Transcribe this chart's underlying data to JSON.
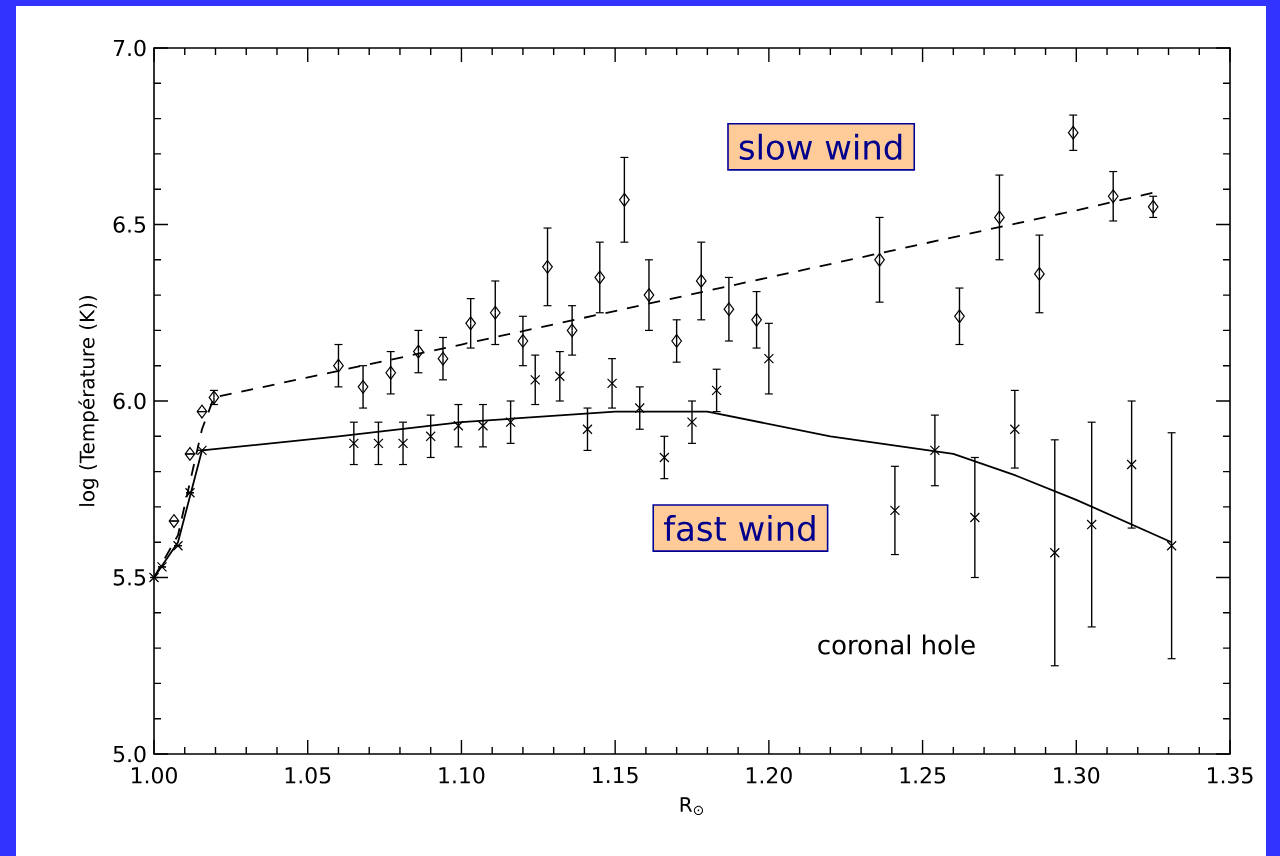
{
  "chart_data": {
    "type": "scatter",
    "xlabel": "R$_{⊙}$",
    "ylabel": "log (Température (K))",
    "xlim": [
      1.0,
      1.35
    ],
    "ylim": [
      5.0,
      7.0
    ],
    "xticks": [
      {
        "value": 1.0,
        "label": "1.00"
      },
      {
        "value": 1.05,
        "label": "1.05"
      },
      {
        "value": 1.1,
        "label": "1.10"
      },
      {
        "value": 1.15,
        "label": "1.15"
      },
      {
        "value": 1.2,
        "label": "1.20"
      },
      {
        "value": 1.25,
        "label": "1.25"
      },
      {
        "value": 1.3,
        "label": "1.30"
      },
      {
        "value": 1.35,
        "label": "1.35"
      }
    ],
    "yticks": [
      {
        "value": 5.0,
        "label": "5.0"
      },
      {
        "value": 5.5,
        "label": "5.5"
      },
      {
        "value": 6.0,
        "label": "6.0"
      },
      {
        "value": 6.5,
        "label": "6.5"
      },
      {
        "value": 7.0,
        "label": "7.0"
      }
    ],
    "series": [
      {
        "color": "#000000",
        "marker": "diamond",
        "x": [
          1.0065,
          1.0117,
          1.0156,
          1.0195,
          1.06,
          1.068,
          1.077,
          1.086,
          1.094,
          1.103,
          1.111,
          1.12,
          1.128,
          1.136,
          1.145,
          1.153,
          1.161,
          1.17,
          1.178,
          1.187,
          1.196,
          1.236,
          1.262,
          1.275,
          1.288,
          1.299,
          1.312,
          1.325
        ],
        "values": [
          5.66,
          5.85,
          5.97,
          6.01,
          6.1,
          6.04,
          6.08,
          6.14,
          6.12,
          6.22,
          6.25,
          6.17,
          6.38,
          6.2,
          6.35,
          6.57,
          6.3,
          6.17,
          6.34,
          6.26,
          6.23,
          6.4,
          6.24,
          6.52,
          6.36,
          6.76,
          6.58,
          6.55
        ],
        "errors": [
          null,
          null,
          null,
          0.02,
          0.06,
          0.06,
          0.06,
          0.06,
          0.06,
          0.07,
          0.09,
          0.07,
          0.11,
          0.07,
          0.1,
          0.12,
          0.1,
          0.06,
          0.11,
          0.09,
          0.08,
          0.12,
          0.08,
          0.12,
          0.11,
          0.05,
          0.07,
          0.03
        ]
      },
      {
        "color": "#000000",
        "marker": "cross",
        "x": [
          1.0,
          1.0026,
          1.0078,
          1.0117,
          1.0156,
          1.065,
          1.073,
          1.081,
          1.09,
          1.099,
          1.107,
          1.116,
          1.124,
          1.132,
          1.141,
          1.149,
          1.158,
          1.166,
          1.175,
          1.183,
          1.2,
          1.241,
          1.254,
          1.267,
          1.28,
          1.293,
          1.305,
          1.318,
          1.331
        ],
        "values": [
          5.5,
          5.53,
          5.59,
          5.74,
          5.86,
          5.88,
          5.88,
          5.88,
          5.9,
          5.93,
          5.93,
          5.94,
          6.06,
          6.07,
          5.92,
          6.05,
          5.98,
          5.84,
          5.94,
          6.03,
          6.12,
          5.69,
          5.86,
          5.67,
          5.92,
          5.57,
          5.65,
          5.82,
          5.59
        ],
        "errors": [
          null,
          null,
          null,
          null,
          null,
          0.06,
          0.06,
          0.06,
          0.06,
          0.06,
          0.06,
          0.06,
          0.07,
          0.07,
          0.06,
          0.07,
          0.06,
          0.06,
          0.06,
          0.06,
          0.1,
          0.125,
          0.1,
          0.17,
          0.11,
          0.32,
          0.29,
          0.18,
          0.32
        ]
      },
      {
        "type": "line",
        "color": "#000000",
        "line_style": "dashed",
        "x": [
          1.0,
          1.0078,
          1.0156,
          1.0195,
          1.1,
          1.2,
          1.3,
          1.325
        ],
        "values": [
          5.5,
          5.62,
          5.92,
          6.01,
          6.16,
          6.35,
          6.54,
          6.59
        ]
      },
      {
        "type": "line",
        "color": "#000000",
        "line_style": "solid",
        "x": [
          1.0,
          1.0078,
          1.0156,
          1.06,
          1.1,
          1.15,
          1.18,
          1.22,
          1.26,
          1.28,
          1.3,
          1.331
        ],
        "values": [
          5.5,
          5.6,
          5.86,
          5.9,
          5.94,
          5.97,
          5.97,
          5.9,
          5.85,
          5.79,
          5.72,
          5.6
        ]
      }
    ],
    "annotations": [
      "slow wind",
      "fast wind",
      "coronal hole"
    ]
  }
}
